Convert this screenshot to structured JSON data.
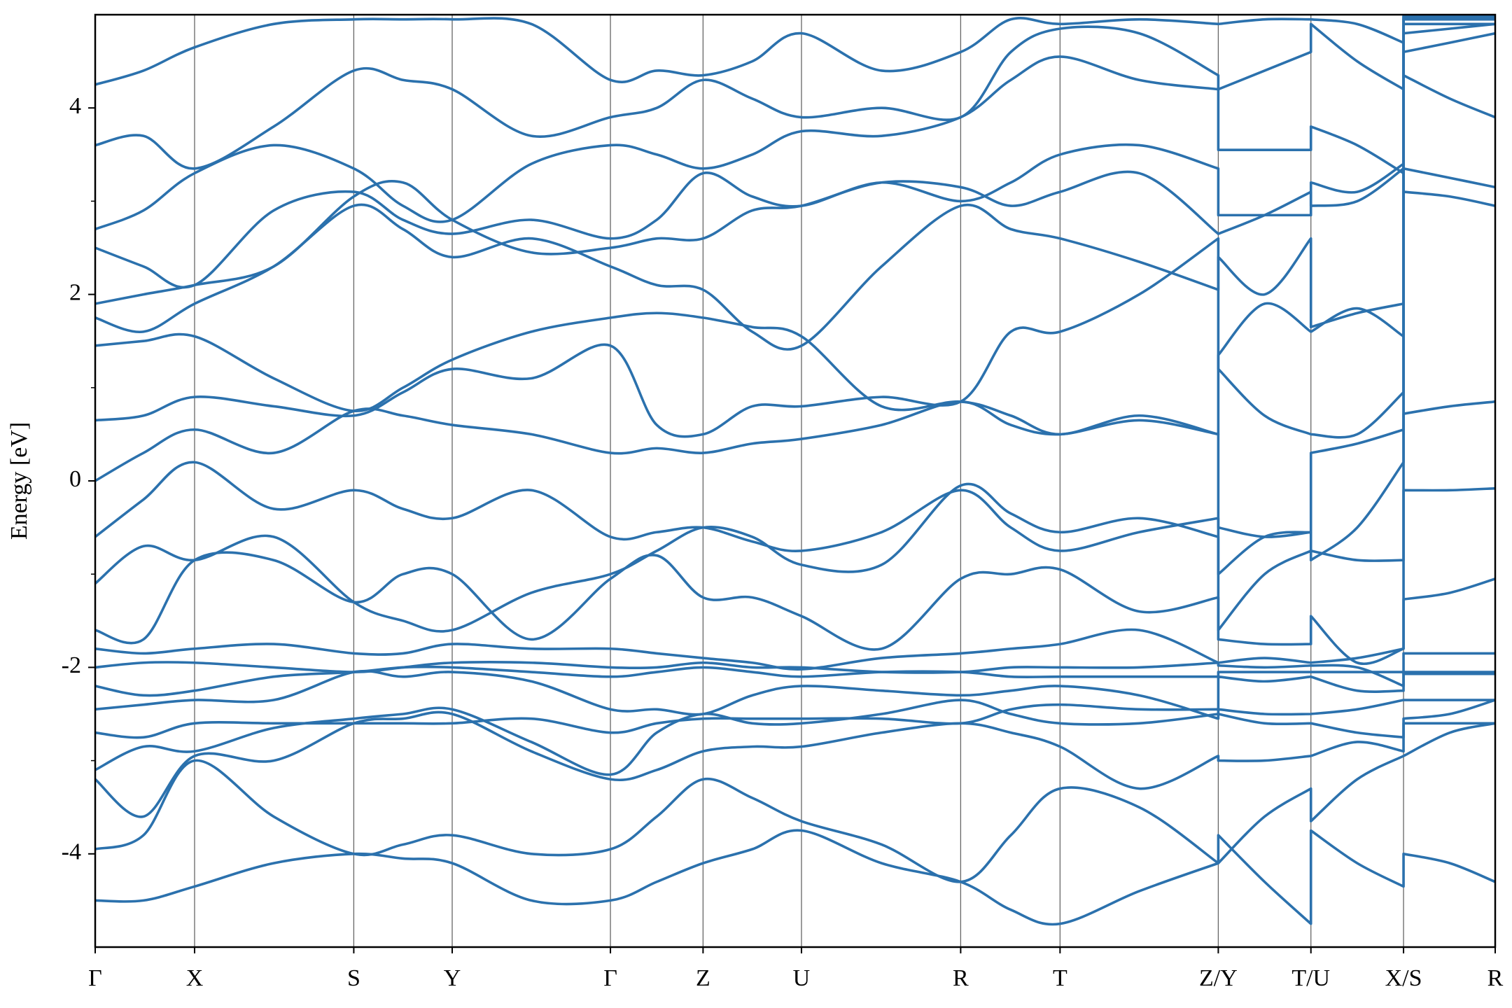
{
  "chart_data": {
    "type": "line",
    "y_label": "Energy [eV]",
    "color": "#2b71ad",
    "xlim": [
      0,
      14.51
    ],
    "ylim": [
      -5,
      5
    ],
    "yticks": [
      -4,
      -2,
      0,
      2,
      4
    ],
    "yminorticks": [
      -3,
      -1,
      1,
      3
    ],
    "xticks": [
      {
        "value": 0,
        "label": "Γ"
      },
      {
        "value": 1.03,
        "label": "X"
      },
      {
        "value": 2.68,
        "label": "S"
      },
      {
        "value": 3.7,
        "label": "Y"
      },
      {
        "value": 5.34,
        "label": "Γ"
      },
      {
        "value": 6.3,
        "label": "Z"
      },
      {
        "value": 7.32,
        "label": "U"
      },
      {
        "value": 8.97,
        "label": "R"
      },
      {
        "value": 10.0,
        "label": "T"
      },
      {
        "value": 11.64,
        "label": "Z/Y"
      },
      {
        "value": 12.6,
        "label": "T/U"
      },
      {
        "value": 13.56,
        "label": "X/S"
      },
      {
        "value": 14.51,
        "label": "R"
      }
    ],
    "x": [
      0,
      0.5,
      1.03,
      1.85,
      2.68,
      3.19,
      3.7,
      4.52,
      5.34,
      5.82,
      6.3,
      6.81,
      7.32,
      8.15,
      8.97,
      9.49,
      10.0,
      10.82,
      11.64,
      11.64,
      12.12,
      12.6,
      12.6,
      13.08,
      13.56,
      13.56,
      14.04,
      14.51
    ],
    "series": [
      {
        "values": [
          -4.5,
          -4.5,
          -4.35,
          -4.1,
          -4.0,
          -4.05,
          -4.1,
          -4.5,
          -4.5,
          -4.3,
          -4.1,
          -3.95,
          -3.75,
          -4.1,
          -4.3,
          -4.6,
          -4.75,
          -4.4,
          -4.1,
          -3.8,
          -4.3,
          -4.75,
          -3.75,
          -4.1,
          -4.35,
          -4.0,
          -4.1,
          -4.3
        ]
      },
      {
        "values": [
          -3.95,
          -3.8,
          -3.0,
          -3.6,
          -4.0,
          -3.9,
          -3.8,
          -4.0,
          -3.95,
          -3.6,
          -3.2,
          -3.4,
          -3.65,
          -3.9,
          -4.3,
          -3.8,
          -3.3,
          -3.5,
          -4.1,
          -4.1,
          -3.6,
          -3.3,
          -3.65,
          -3.2,
          -2.95,
          -2.95,
          -2.7,
          -2.6
        ]
      },
      {
        "values": [
          -3.2,
          -3.6,
          -2.95,
          -3.0,
          -2.6,
          -2.55,
          -2.5,
          -2.9,
          -3.2,
          -3.1,
          -2.9,
          -2.85,
          -2.85,
          -2.7,
          -2.6,
          -2.7,
          -2.85,
          -3.3,
          -2.95,
          -3.0,
          -3.0,
          -2.95,
          -2.95,
          -2.8,
          -2.9,
          -2.55,
          -2.5,
          -2.35
        ]
      },
      {
        "values": [
          -3.1,
          -2.85,
          -2.9,
          -2.65,
          -2.55,
          -2.5,
          -2.45,
          -2.8,
          -3.15,
          -2.7,
          -2.5,
          -2.6,
          -2.6,
          -2.5,
          -2.35,
          -2.5,
          -2.6,
          -2.6,
          -2.5,
          -2.5,
          -2.6,
          -2.6,
          -2.6,
          -2.7,
          -2.75,
          -2.6,
          -2.6,
          -2.6
        ]
      },
      {
        "values": [
          -2.7,
          -2.75,
          -2.6,
          -2.6,
          -2.6,
          -2.6,
          -2.6,
          -2.55,
          -2.7,
          -2.6,
          -2.55,
          -2.55,
          -2.55,
          -2.55,
          -2.6,
          -2.45,
          -2.4,
          -2.45,
          -2.45,
          -2.45,
          -2.5,
          -2.5,
          -2.5,
          -2.45,
          -2.35,
          -2.35,
          -2.35,
          -2.35
        ]
      },
      {
        "values": [
          -2.45,
          -2.4,
          -2.35,
          -2.35,
          -2.05,
          -2.1,
          -2.05,
          -2.15,
          -2.45,
          -2.45,
          -2.5,
          -2.3,
          -2.2,
          -2.25,
          -2.3,
          -2.25,
          -2.2,
          -2.3,
          -2.55,
          -2.1,
          -2.15,
          -2.1,
          -2.1,
          -2.25,
          -2.25,
          -2.05,
          -2.05,
          -2.05
        ]
      },
      {
        "values": [
          -2.2,
          -2.3,
          -2.25,
          -2.1,
          -2.05,
          -2.0,
          -2.0,
          -2.05,
          -2.1,
          -2.05,
          -2.0,
          -2.05,
          -2.1,
          -2.05,
          -2.05,
          -2.1,
          -2.1,
          -2.1,
          -2.1,
          -2.05,
          -2.05,
          -2.05,
          -2.05,
          -2.05,
          -2.05,
          -2.07,
          -2.07,
          -2.07
        ]
      },
      {
        "values": [
          -2.0,
          -1.95,
          -1.95,
          -2.0,
          -2.05,
          -2.0,
          -1.95,
          -1.95,
          -2.0,
          -2.0,
          -1.95,
          -2.0,
          -2.0,
          -2.05,
          -2.05,
          -2.0,
          -2.0,
          -2.0,
          -1.95,
          -1.98,
          -2.0,
          -1.98,
          -1.98,
          -2.0,
          -2.2,
          -1.85,
          -1.85,
          -1.85
        ]
      },
      {
        "values": [
          -1.8,
          -1.85,
          -1.8,
          -1.75,
          -1.85,
          -1.85,
          -1.75,
          -1.8,
          -1.8,
          -1.85,
          -1.9,
          -1.95,
          -2.02,
          -1.9,
          -1.85,
          -1.8,
          -1.75,
          -1.6,
          -1.95,
          -1.95,
          -1.9,
          -1.95,
          -1.95,
          -1.9,
          -1.8,
          -1.27,
          -1.2,
          -1.05
        ]
      },
      {
        "values": [
          -1.6,
          -1.7,
          -0.85,
          -0.85,
          -1.3,
          -1.0,
          -1.0,
          -1.7,
          -1.05,
          -0.8,
          -1.25,
          -1.25,
          -1.45,
          -1.8,
          -1.05,
          -1.0,
          -0.95,
          -1.4,
          -1.25,
          -1.7,
          -1.75,
          -1.75,
          -1.45,
          -1.95,
          -1.8,
          -0.1,
          -0.1,
          -0.08
        ]
      },
      {
        "values": [
          -1.1,
          -0.7,
          -0.85,
          -0.6,
          -1.3,
          -1.5,
          -1.6,
          -1.2,
          -1.0,
          -0.75,
          -0.5,
          -0.6,
          -0.9,
          -0.9,
          -0.05,
          -0.35,
          -0.55,
          -0.4,
          -0.6,
          -1.6,
          -1.0,
          -0.75,
          -0.75,
          -0.85,
          -0.85,
          0.72,
          0.8,
          0.85
        ]
      },
      {
        "values": [
          -0.6,
          -0.2,
          0.2,
          -0.3,
          -0.1,
          -0.3,
          -0.4,
          -0.1,
          -0.6,
          -0.55,
          -0.5,
          -0.65,
          -0.75,
          -0.55,
          -0.1,
          -0.5,
          -0.75,
          -0.55,
          -0.4,
          -1.0,
          -0.6,
          -0.55,
          -0.85,
          -0.5,
          0.2,
          3.1,
          3.05,
          2.95
        ]
      },
      {
        "values": [
          0.0,
          0.3,
          0.55,
          0.3,
          0.75,
          0.7,
          0.6,
          0.5,
          0.3,
          0.35,
          0.3,
          0.4,
          0.45,
          0.6,
          0.85,
          0.6,
          0.5,
          0.65,
          0.5,
          -0.5,
          -0.6,
          -0.55,
          0.3,
          0.4,
          0.55,
          3.35,
          3.25,
          3.15
        ]
      },
      {
        "values": [
          0.65,
          0.7,
          0.9,
          0.8,
          0.7,
          0.95,
          1.2,
          1.1,
          1.45,
          0.6,
          0.5,
          0.8,
          0.8,
          0.9,
          0.85,
          1.6,
          1.6,
          2.0,
          2.6,
          1.2,
          0.7,
          0.5,
          0.5,
          0.5,
          0.95,
          4.35,
          4.1,
          3.9
        ]
      },
      {
        "values": [
          1.45,
          1.5,
          1.55,
          1.1,
          0.75,
          1.0,
          1.3,
          1.6,
          1.75,
          1.8,
          1.75,
          1.65,
          1.55,
          0.8,
          0.85,
          0.7,
          0.5,
          0.7,
          0.5,
          1.35,
          1.9,
          1.6,
          1.6,
          1.85,
          1.55,
          4.6,
          4.7,
          4.8
        ]
      },
      {
        "values": [
          1.75,
          1.6,
          1.9,
          2.3,
          2.95,
          2.7,
          2.4,
          2.6,
          2.3,
          2.1,
          2.05,
          1.6,
          1.45,
          2.3,
          2.95,
          2.7,
          2.6,
          2.35,
          2.05,
          2.4,
          2.0,
          2.6,
          1.65,
          1.8,
          1.9,
          4.8,
          4.85,
          4.9
        ]
      },
      {
        "values": [
          1.9,
          2.0,
          2.1,
          2.3,
          3.05,
          3.2,
          2.8,
          2.45,
          2.5,
          2.6,
          2.6,
          2.9,
          2.95,
          3.2,
          3.15,
          2.95,
          3.1,
          3.3,
          2.65,
          2.65,
          2.85,
          3.1,
          2.95,
          3.0,
          3.35,
          4.9,
          4.9,
          4.9
        ]
      },
      {
        "values": [
          2.5,
          2.3,
          2.1,
          2.9,
          3.1,
          2.8,
          2.65,
          2.8,
          2.6,
          2.8,
          3.3,
          3.05,
          2.95,
          3.2,
          3.0,
          3.2,
          3.5,
          3.6,
          3.35,
          2.85,
          2.85,
          2.85,
          3.2,
          3.1,
          3.4,
          4.95,
          4.95,
          4.95
        ]
      },
      {
        "values": [
          2.7,
          2.9,
          3.3,
          3.6,
          3.35,
          2.95,
          2.8,
          3.4,
          3.6,
          3.5,
          3.35,
          3.5,
          3.75,
          3.7,
          3.9,
          4.3,
          4.55,
          4.3,
          4.2,
          3.55,
          3.55,
          3.55,
          3.8,
          3.6,
          3.3,
          4.97,
          4.97,
          4.97
        ]
      },
      {
        "values": [
          3.6,
          3.7,
          3.35,
          3.8,
          4.4,
          4.3,
          4.2,
          3.7,
          3.9,
          4.0,
          4.3,
          4.1,
          3.9,
          4.0,
          3.9,
          4.6,
          4.85,
          4.8,
          4.35,
          4.2,
          4.4,
          4.6,
          4.9,
          4.5,
          4.2,
          4.98,
          4.98,
          4.98
        ]
      },
      {
        "values": [
          4.25,
          4.4,
          4.65,
          4.9,
          4.95,
          4.95,
          4.95,
          4.9,
          4.3,
          4.4,
          4.35,
          4.5,
          4.8,
          4.4,
          4.6,
          4.95,
          4.9,
          4.95,
          4.9,
          4.9,
          4.95,
          4.95,
          4.95,
          4.9,
          4.7,
          4.99,
          4.99,
          4.99
        ]
      }
    ]
  }
}
